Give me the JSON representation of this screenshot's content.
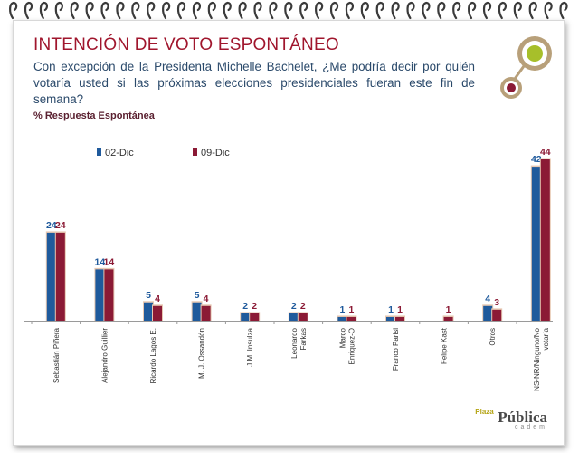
{
  "header": {
    "title": "INTENCIÓN DE VOTO ESPONTÁNEO",
    "question": "Con excepción de la Presidenta Michelle Bachelet, ¿Me podría decir por quién votaría usted si las próximas elecciones presidenciales fueran este fin de semana?",
    "subtitle": "% Respuesta Espontánea"
  },
  "brand": {
    "name": "Pública",
    "sup": "Plaza",
    "sub": "cadem"
  },
  "colors": {
    "title": "#a0162d",
    "series1": "#1f5a9c",
    "series2": "#8b1a35",
    "text": "#2b4a6b"
  },
  "chart_data": {
    "type": "bar",
    "title": "Intención de voto espontáneo",
    "ylabel": "%",
    "ylim": [
      0,
      44
    ],
    "legend_position": "top-left",
    "categories": [
      "Sebastián Piñera",
      "Alejandro  Guillier",
      "Ricardo Lagos E.",
      "M. J. Ossandón",
      "J.M. Insulza",
      "Leonardo Farkas",
      "Marco Enriquez-O",
      "Franco Parisi",
      "Felipe Kast",
      "Otros",
      "NS-NR/Ninguno/No votaría"
    ],
    "label_lines": [
      [
        "Sebastián Piñera"
      ],
      [
        "Alejandro  Guillier"
      ],
      [
        "Ricardo Lagos E."
      ],
      [
        "M. J. Ossandón"
      ],
      [
        "J.M. Insulza"
      ],
      [
        "Leonardo",
        "Farkas"
      ],
      [
        "Marco",
        "Enriquez-O"
      ],
      [
        "Franco Parisi"
      ],
      [
        "Felipe Kast"
      ],
      [
        "Otros"
      ],
      [
        "NS-NR/Ninguno/No",
        "votaría"
      ]
    ],
    "series": [
      {
        "name": "02-Dic",
        "values": [
          24,
          14,
          5,
          5,
          2,
          2,
          1,
          1,
          null,
          4,
          42
        ]
      },
      {
        "name": "09-Dic",
        "values": [
          24,
          14,
          4,
          4,
          2,
          2,
          1,
          1,
          1,
          3,
          44
        ]
      }
    ]
  }
}
